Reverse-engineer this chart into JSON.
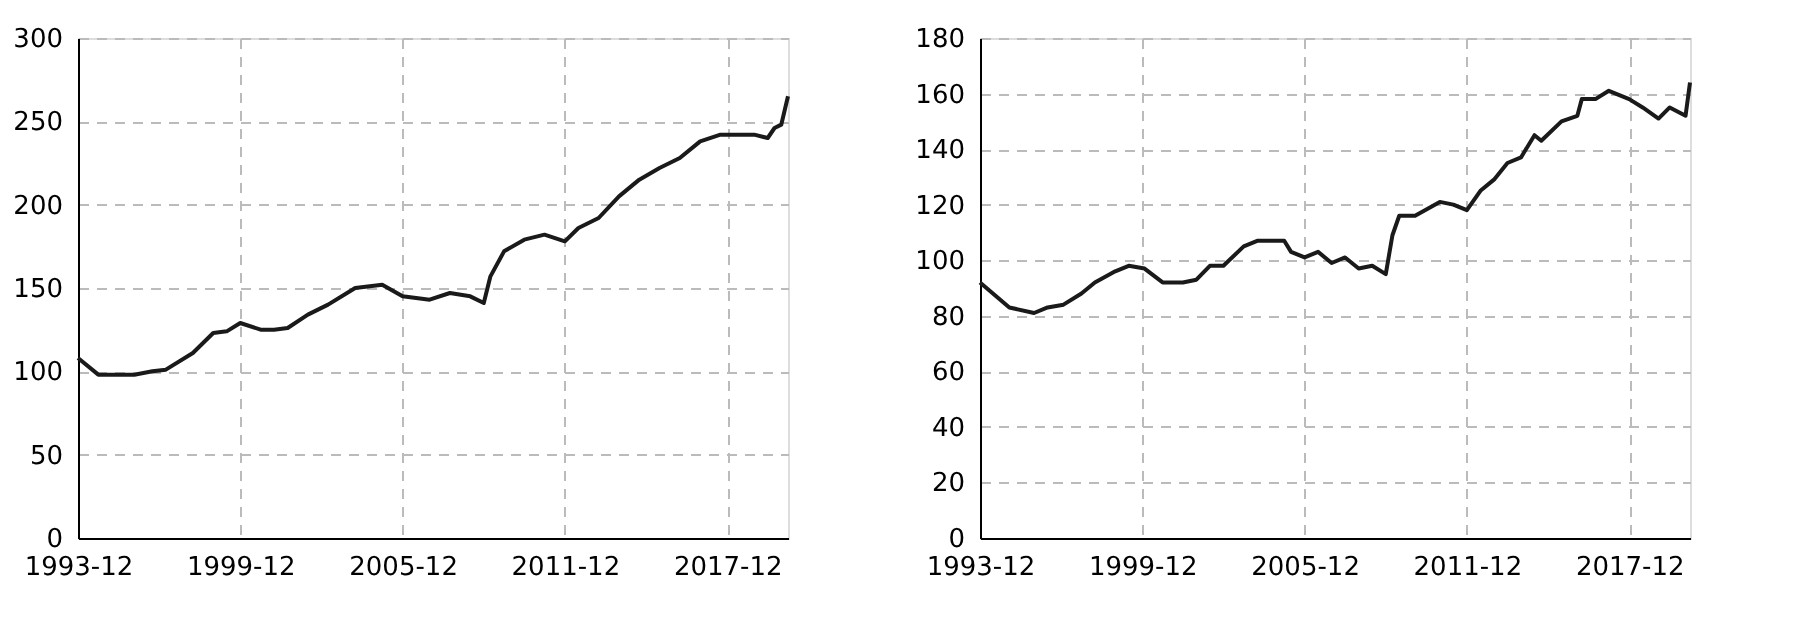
{
  "chart_data": [
    {
      "type": "line",
      "x": [
        "1993-12",
        "1994-09",
        "1996-01",
        "1996-09",
        "1997-03",
        "1998-03",
        "1998-12",
        "1999-06",
        "1999-12",
        "2000-09",
        "2001-03",
        "2001-09",
        "2002-06",
        "2003-03",
        "2004-03",
        "2005-03",
        "2005-12",
        "2006-12",
        "2007-09",
        "2008-06",
        "2008-12",
        "2009-03",
        "2009-09",
        "2010-06",
        "2011-03",
        "2011-12",
        "2012-06",
        "2013-03",
        "2013-12",
        "2014-09",
        "2015-06",
        "2016-03",
        "2016-12",
        "2017-09",
        "2018-06",
        "2018-12",
        "2019-06",
        "2019-09",
        "2019-12",
        "2020-03"
      ],
      "values": [
        108,
        98,
        98,
        100,
        101,
        111,
        123,
        124,
        129,
        125,
        125,
        126,
        134,
        140,
        150,
        152,
        145,
        143,
        147,
        145,
        141,
        157,
        172,
        179,
        182,
        178,
        186,
        192,
        205,
        215,
        222,
        228,
        238,
        242,
        242,
        242,
        240,
        246,
        248,
        265
      ],
      "color": "#1a1a1a",
      "xlim": [
        "1993-12",
        "2020-03"
      ],
      "xticks": [
        "1993-12",
        "1999-12",
        "2005-12",
        "2011-12",
        "2017-12"
      ],
      "ylim": [
        0,
        300
      ],
      "yticks": [
        0,
        50,
        100,
        150,
        200,
        250,
        300
      ],
      "grid": true,
      "marker": "none",
      "line_style": "solid"
    },
    {
      "type": "line",
      "x": [
        "1993-12",
        "1995-01",
        "1995-12",
        "1996-06",
        "1997-01",
        "1997-09",
        "1998-03",
        "1998-12",
        "1999-06",
        "2000-01",
        "2000-09",
        "2001-06",
        "2001-12",
        "2002-06",
        "2002-12",
        "2003-09",
        "2004-03",
        "2005-03",
        "2005-06",
        "2005-12",
        "2006-06",
        "2006-12",
        "2007-06",
        "2007-12",
        "2008-06",
        "2008-12",
        "2009-03",
        "2009-06",
        "2010-01",
        "2010-12",
        "2011-06",
        "2011-12",
        "2012-06",
        "2012-12",
        "2013-06",
        "2013-12",
        "2014-06",
        "2014-09",
        "2015-06",
        "2016-01",
        "2016-03",
        "2016-09",
        "2017-03",
        "2017-12",
        "2018-06",
        "2019-01",
        "2019-06",
        "2020-01",
        "2020-03"
      ],
      "values": [
        92,
        83,
        81,
        83,
        84,
        88,
        92,
        96,
        98,
        97,
        92,
        92,
        93,
        98,
        98,
        105,
        107,
        107,
        103,
        101,
        103,
        99,
        101,
        97,
        98,
        95,
        109,
        116,
        116,
        121,
        120,
        118,
        125,
        129,
        135,
        137,
        145,
        143,
        150,
        152,
        158,
        158,
        161,
        158,
        155,
        151,
        155,
        152,
        164
      ],
      "color": "#1a1a1a",
      "xlim": [
        "1993-12",
        "2020-03"
      ],
      "xticks": [
        "1993-12",
        "1999-12",
        "2005-12",
        "2011-12",
        "2017-12"
      ],
      "ylim": [
        0,
        180
      ],
      "yticks": [
        0,
        20,
        40,
        60,
        80,
        100,
        120,
        140,
        160,
        180
      ],
      "grid": true,
      "marker": "none",
      "line_style": "solid"
    }
  ]
}
